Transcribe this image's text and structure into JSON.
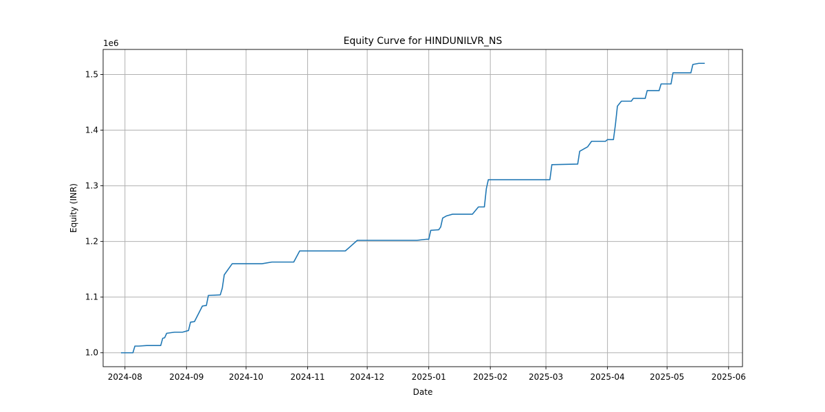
{
  "chart_data": {
    "type": "line",
    "title": "Equity Curve for HINDUNILVR_NS",
    "xlabel": "Date",
    "ylabel": "Equity (INR)",
    "y_offset_label": "1e6",
    "y_scale": 1000000,
    "grid": true,
    "xlim": [
      "2024-07-21",
      "2025-06-08"
    ],
    "ylim": [
      975000,
      1545000
    ],
    "x_ticks": [
      {
        "date": "2024-08-01",
        "label": "2024-08"
      },
      {
        "date": "2024-09-01",
        "label": "2024-09"
      },
      {
        "date": "2024-10-01",
        "label": "2024-10"
      },
      {
        "date": "2024-11-01",
        "label": "2024-11"
      },
      {
        "date": "2024-12-01",
        "label": "2024-12"
      },
      {
        "date": "2025-01-01",
        "label": "2025-01"
      },
      {
        "date": "2025-02-01",
        "label": "2025-02"
      },
      {
        "date": "2025-03-01",
        "label": "2025-03"
      },
      {
        "date": "2025-04-01",
        "label": "2025-04"
      },
      {
        "date": "2025-05-01",
        "label": "2025-05"
      },
      {
        "date": "2025-06-01",
        "label": "2025-06"
      }
    ],
    "y_ticks": [
      {
        "value": 1000000,
        "label": "1.0"
      },
      {
        "value": 1100000,
        "label": "1.1"
      },
      {
        "value": 1200000,
        "label": "1.2"
      },
      {
        "value": 1300000,
        "label": "1.3"
      },
      {
        "value": 1400000,
        "label": "1.4"
      },
      {
        "value": 1500000,
        "label": "1.5"
      }
    ],
    "series": [
      {
        "color": "#1f77b4",
        "points": [
          [
            "2024-07-30",
            1000000
          ],
          [
            "2024-08-05",
            1000000
          ],
          [
            "2024-08-06",
            1012000
          ],
          [
            "2024-08-08",
            1012000
          ],
          [
            "2024-08-12",
            1013000
          ],
          [
            "2024-08-19",
            1013000
          ],
          [
            "2024-08-20",
            1026000
          ],
          [
            "2024-08-21",
            1027000
          ],
          [
            "2024-08-22",
            1035000
          ],
          [
            "2024-08-26",
            1037000
          ],
          [
            "2024-08-30",
            1037000
          ],
          [
            "2024-09-02",
            1040000
          ],
          [
            "2024-09-03",
            1055000
          ],
          [
            "2024-09-05",
            1056000
          ],
          [
            "2024-09-09",
            1084000
          ],
          [
            "2024-09-11",
            1085000
          ],
          [
            "2024-09-12",
            1103000
          ],
          [
            "2024-09-18",
            1104000
          ],
          [
            "2024-09-19",
            1116000
          ],
          [
            "2024-09-20",
            1140000
          ],
          [
            "2024-09-24",
            1160000
          ],
          [
            "2024-10-09",
            1160000
          ],
          [
            "2024-10-14",
            1163000
          ],
          [
            "2024-10-25",
            1163000
          ],
          [
            "2024-10-28",
            1183000
          ],
          [
            "2024-11-20",
            1183000
          ],
          [
            "2024-11-26",
            1202000
          ],
          [
            "2024-12-26",
            1202000
          ],
          [
            "2024-12-31",
            1204000
          ],
          [
            "2025-01-01",
            1204000
          ],
          [
            "2025-01-02",
            1220000
          ],
          [
            "2025-01-06",
            1221000
          ],
          [
            "2025-01-07",
            1226000
          ],
          [
            "2025-01-08",
            1242000
          ],
          [
            "2025-01-10",
            1246000
          ],
          [
            "2025-01-13",
            1249000
          ],
          [
            "2025-01-23",
            1249000
          ],
          [
            "2025-01-26",
            1262000
          ],
          [
            "2025-01-29",
            1262000
          ],
          [
            "2025-01-30",
            1295000
          ],
          [
            "2025-01-31",
            1311000
          ],
          [
            "2025-02-03",
            1311000
          ],
          [
            "2025-03-03",
            1311000
          ],
          [
            "2025-03-04",
            1338000
          ],
          [
            "2025-03-17",
            1339000
          ],
          [
            "2025-03-18",
            1362000
          ],
          [
            "2025-03-20",
            1366000
          ],
          [
            "2025-03-22",
            1370000
          ],
          [
            "2025-03-24",
            1380000
          ],
          [
            "2025-03-31",
            1380000
          ],
          [
            "2025-04-01",
            1383000
          ],
          [
            "2025-04-04",
            1383000
          ],
          [
            "2025-04-05",
            1410000
          ],
          [
            "2025-04-06",
            1443000
          ],
          [
            "2025-04-08",
            1452000
          ],
          [
            "2025-04-13",
            1452000
          ],
          [
            "2025-04-14",
            1457000
          ],
          [
            "2025-04-20",
            1457000
          ],
          [
            "2025-04-21",
            1471000
          ],
          [
            "2025-04-27",
            1471000
          ],
          [
            "2025-04-28",
            1483000
          ],
          [
            "2025-05-03",
            1483000
          ],
          [
            "2025-05-04",
            1503000
          ],
          [
            "2025-05-13",
            1503000
          ],
          [
            "2025-05-14",
            1518000
          ],
          [
            "2025-05-17",
            1520000
          ],
          [
            "2025-05-20",
            1520000
          ]
        ]
      }
    ]
  }
}
